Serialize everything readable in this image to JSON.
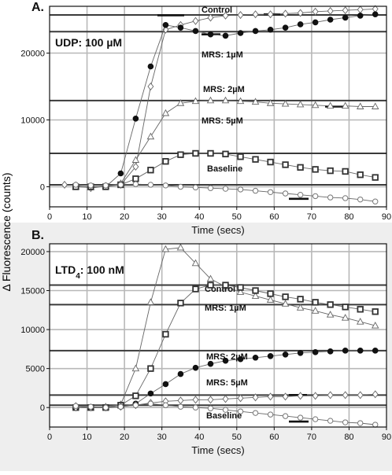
{
  "figure": {
    "shared_ylabel": "Δ Fluorescence (counts)"
  },
  "chart_data": [
    {
      "type": "line",
      "panel_label": "A.",
      "condition": "UDP: 100 µM",
      "xlabel": "Time (secs)",
      "xlim": [
        0,
        90
      ],
      "ylim": [
        -3000,
        27000
      ],
      "xticks": [
        0,
        10,
        20,
        30,
        40,
        50,
        60,
        70,
        80,
        90
      ],
      "yticks": [
        0,
        10000,
        20000
      ],
      "grid": true,
      "levels": [
        25700,
        23200,
        12900,
        5000,
        300
      ],
      "series": [
        {
          "name": "Control",
          "marker": "diamond",
          "x": [
            4,
            7,
            11,
            15,
            19,
            23,
            27,
            31,
            35,
            39,
            43,
            47,
            51,
            55,
            59,
            63,
            67,
            71,
            75,
            79,
            83,
            87
          ],
          "y": [
            300,
            200,
            -200,
            100,
            300,
            3000,
            15000,
            23500,
            24200,
            24800,
            25300,
            25600,
            25700,
            25800,
            25800,
            25900,
            26000,
            26200,
            26300,
            26400,
            26500,
            26600
          ]
        },
        {
          "name": "MRS: 1µM",
          "marker": "circle-filled",
          "x": [
            7,
            11,
            15,
            19,
            23,
            27,
            31,
            35,
            39,
            43,
            47,
            51,
            55,
            59,
            63,
            67,
            71,
            75,
            79,
            83,
            87
          ],
          "y": [
            100,
            0,
            0,
            2000,
            10200,
            18000,
            24200,
            23800,
            23300,
            22800,
            22600,
            23000,
            23300,
            23500,
            23800,
            24300,
            24600,
            25000,
            25300,
            25600,
            25800
          ]
        },
        {
          "name": "MRS: 2µM",
          "marker": "triangle",
          "x": [
            7,
            11,
            15,
            19,
            23,
            27,
            31,
            35,
            39,
            43,
            47,
            51,
            55,
            59,
            63,
            67,
            71,
            75,
            79,
            83,
            87
          ],
          "y": [
            0,
            -100,
            100,
            500,
            4000,
            7500,
            11000,
            12500,
            12800,
            12900,
            12900,
            12800,
            12700,
            12500,
            12400,
            12300,
            12200,
            12100,
            12100,
            12000,
            12000
          ]
        },
        {
          "name": "MRS: 5µM",
          "marker": "square",
          "x": [
            7,
            11,
            15,
            19,
            23,
            27,
            31,
            35,
            39,
            43,
            47,
            51,
            55,
            59,
            63,
            67,
            71,
            75,
            79,
            83,
            87
          ],
          "y": [
            0,
            0,
            0,
            300,
            1200,
            2500,
            3800,
            4800,
            5000,
            5000,
            4900,
            4500,
            4100,
            3700,
            3300,
            2900,
            2600,
            2400,
            2300,
            1800,
            1400
          ]
        },
        {
          "name": "Baseline",
          "marker": "circle-open",
          "x": [
            7,
            11,
            15,
            19,
            23,
            27,
            31,
            35,
            39,
            43,
            47,
            51,
            55,
            59,
            63,
            67,
            71,
            75,
            79,
            83,
            87
          ],
          "y": [
            300,
            200,
            200,
            300,
            400,
            300,
            200,
            0,
            -100,
            -200,
            -300,
            -400,
            -600,
            -800,
            -1000,
            -1200,
            -1400,
            -1600,
            -1700,
            -1900,
            -2200
          ]
        }
      ]
    },
    {
      "type": "line",
      "panel_label": "B.",
      "condition_main": "LTD",
      "condition_sub": "4",
      "condition_rest": ": 100 nM",
      "xlabel": "Time (secs)",
      "xlim": [
        0,
        90
      ],
      "ylim": [
        -2500,
        21000
      ],
      "xticks": [
        0,
        10,
        20,
        30,
        40,
        50,
        60,
        70,
        80,
        90
      ],
      "yticks": [
        0,
        5000,
        10000,
        15000,
        20000
      ],
      "grid": true,
      "levels": [
        15700,
        13200,
        7300,
        1600,
        300
      ],
      "series": [
        {
          "name": "Control",
          "marker": "triangle",
          "x": [
            7,
            11,
            15,
            19,
            23,
            27,
            31,
            35,
            39,
            43,
            47,
            51,
            55,
            59,
            63,
            67,
            71,
            75,
            79,
            83,
            87
          ],
          "y": [
            200,
            0,
            100,
            400,
            5000,
            13500,
            20300,
            20500,
            18500,
            16500,
            15500,
            14800,
            14300,
            13800,
            13300,
            12800,
            12400,
            11900,
            11500,
            11000,
            10500
          ]
        },
        {
          "name": "MRS: 1µM",
          "marker": "square",
          "x": [
            7,
            11,
            15,
            19,
            23,
            27,
            31,
            35,
            39,
            43,
            47,
            51,
            55,
            59,
            63,
            67,
            71,
            75,
            79,
            83,
            87
          ],
          "y": [
            0,
            0,
            0,
            300,
            1500,
            5000,
            9400,
            13400,
            15200,
            15700,
            15700,
            15400,
            15000,
            14600,
            14200,
            13900,
            13500,
            13200,
            12900,
            12600,
            12300
          ]
        },
        {
          "name": "MRS: 2µM",
          "marker": "circle-filled",
          "x": [
            7,
            11,
            15,
            19,
            23,
            27,
            31,
            35,
            39,
            43,
            47,
            51,
            55,
            59,
            63,
            67,
            71,
            75,
            79,
            83,
            87
          ],
          "y": [
            0,
            0,
            0,
            100,
            500,
            1800,
            3000,
            4300,
            5100,
            5600,
            6000,
            6200,
            6400,
            6600,
            6800,
            7000,
            7100,
            7200,
            7300,
            7300,
            7300
          ]
        },
        {
          "name": "MRS: 5µM",
          "marker": "diamond",
          "x": [
            7,
            11,
            15,
            19,
            23,
            27,
            31,
            35,
            39,
            43,
            47,
            51,
            55,
            59,
            63,
            67,
            71,
            75,
            79,
            83,
            87
          ],
          "y": [
            0,
            0,
            0,
            100,
            300,
            600,
            800,
            900,
            1000,
            1000,
            1100,
            1200,
            1300,
            1400,
            1400,
            1500,
            1500,
            1600,
            1600,
            1600,
            1700
          ]
        },
        {
          "name": "Baseline",
          "marker": "circle-open",
          "x": [
            7,
            11,
            15,
            19,
            23,
            27,
            31,
            35,
            39,
            43,
            47,
            51,
            55,
            59,
            63,
            67,
            71,
            75,
            79,
            83,
            87
          ],
          "y": [
            200,
            100,
            0,
            100,
            300,
            500,
            300,
            100,
            0,
            -100,
            -300,
            -500,
            -700,
            -900,
            -1100,
            -1300,
            -1500,
            -1700,
            -1900,
            -2000,
            -2200
          ]
        }
      ]
    }
  ]
}
